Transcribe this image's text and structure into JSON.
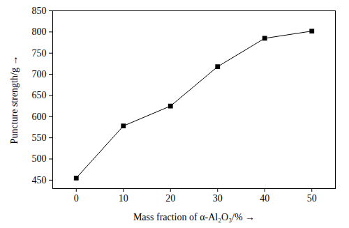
{
  "chart_data": {
    "type": "line",
    "x_label": "Mass fraction of α-Al₂O₃/%",
    "y_label": "Puncture strength/g",
    "x": [
      0,
      10,
      20,
      30,
      40,
      50
    ],
    "values": [
      455,
      578,
      625,
      718,
      785,
      802
    ],
    "color": "#000000",
    "marker": "square",
    "line_style": "solid",
    "xlim": [
      -5,
      55
    ],
    "xticks": [
      0,
      10,
      20,
      30,
      40,
      50
    ],
    "ylim": [
      430,
      850
    ],
    "yticks": [
      450,
      500,
      550,
      600,
      650,
      700,
      750,
      800,
      850
    ],
    "grid": false
  }
}
